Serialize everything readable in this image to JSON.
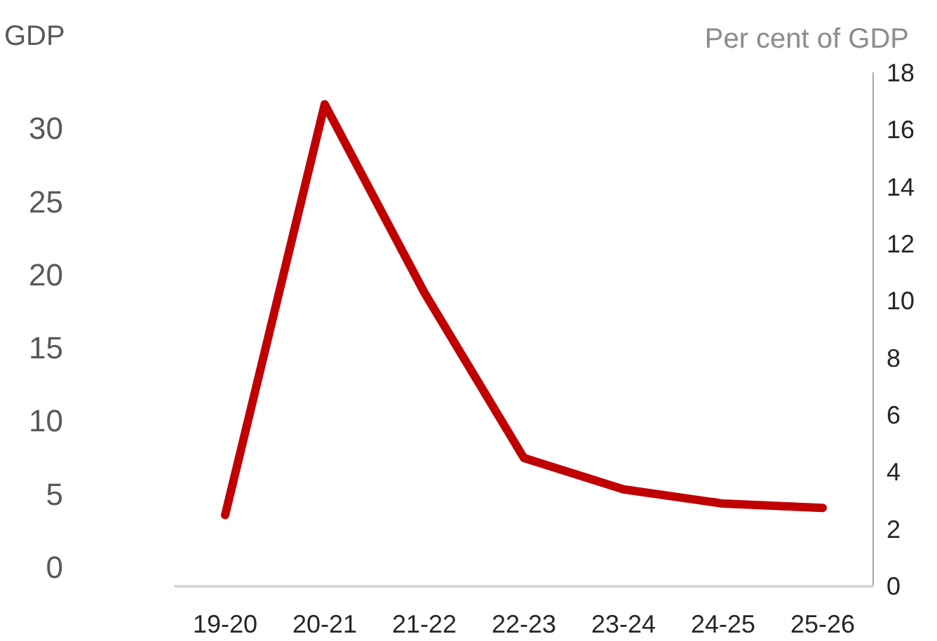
{
  "chart_data": {
    "type": "line",
    "ylabel": "GDP",
    "y2label": "Per cent of GDP",
    "categories": [
      "19-20",
      "20-21",
      "21-22",
      "22-23",
      "23-24",
      "24-25",
      "25-26"
    ],
    "series": [
      {
        "color": "#c00000",
        "axis": "y2",
        "values": [
          2.5,
          16.9,
          10.3,
          4.5,
          3.4,
          2.9,
          2.75
        ]
      }
    ],
    "ylim": [
      -1.3,
      33.8
    ],
    "yticks": [
      0,
      5,
      10,
      15,
      20,
      25,
      30
    ],
    "y2lim": [
      0,
      18
    ],
    "y2ticks": [
      0,
      2,
      4,
      6,
      8,
      10,
      12,
      14,
      16,
      18
    ],
    "grid": false,
    "marker": "none",
    "line_style": "solid"
  }
}
